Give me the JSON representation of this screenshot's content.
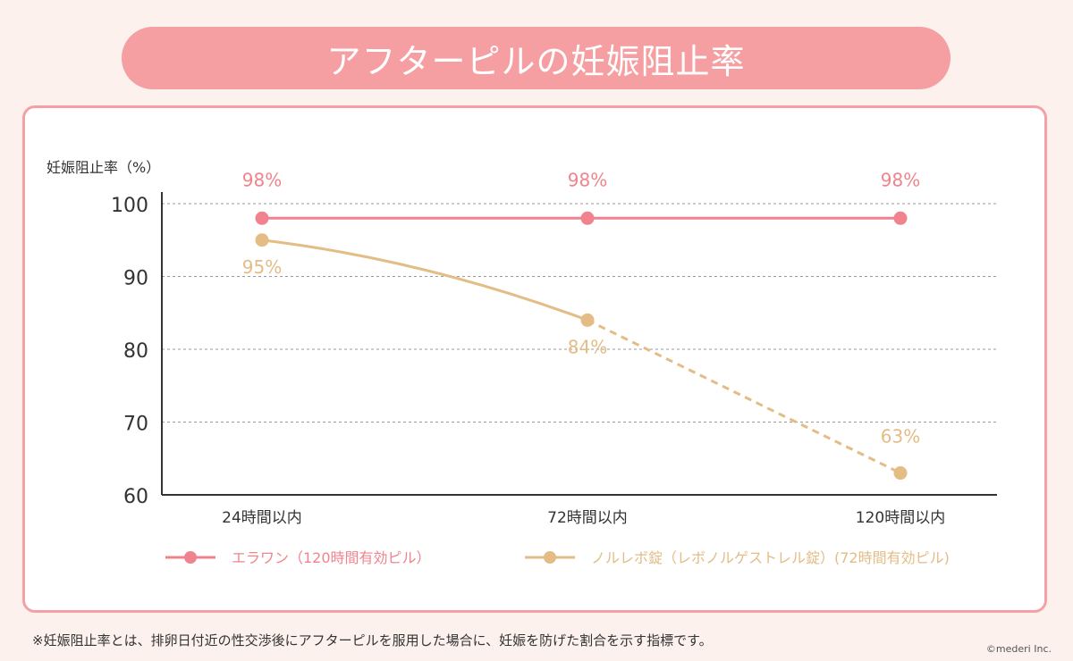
{
  "title": "アフターピルの妊娠阻止率",
  "chart_data": {
    "type": "line",
    "ylabel": "妊娠阻止率（%）",
    "categories": [
      "24時間以内",
      "72時間以内",
      "120時間以内"
    ],
    "ylim": [
      60,
      100
    ],
    "yticks": [
      100,
      90,
      80,
      70,
      60
    ],
    "grid": true,
    "legend_position": "bottom",
    "series": [
      {
        "name": "エラワン（120時間有効ピル）",
        "values": [
          98,
          98,
          98
        ],
        "labels": [
          "98%",
          "98%",
          "98%"
        ],
        "color": "#f0838e",
        "dashed_from_index": null
      },
      {
        "name": "ノルレボ錠（レボノルゲストレル錠）(72時間有効ピル)",
        "values": [
          95,
          84,
          63
        ],
        "labels": [
          "95%",
          "84%",
          "63%"
        ],
        "color": "#e3bc86",
        "dashed_from_index": 1
      }
    ]
  },
  "footnote": "※妊娠阻止率とは、排卵日付近の性交渉後にアフターピルを服用した場合に、妊娠を防げた割合を示す指標です。",
  "copyright": "©mederi Inc."
}
